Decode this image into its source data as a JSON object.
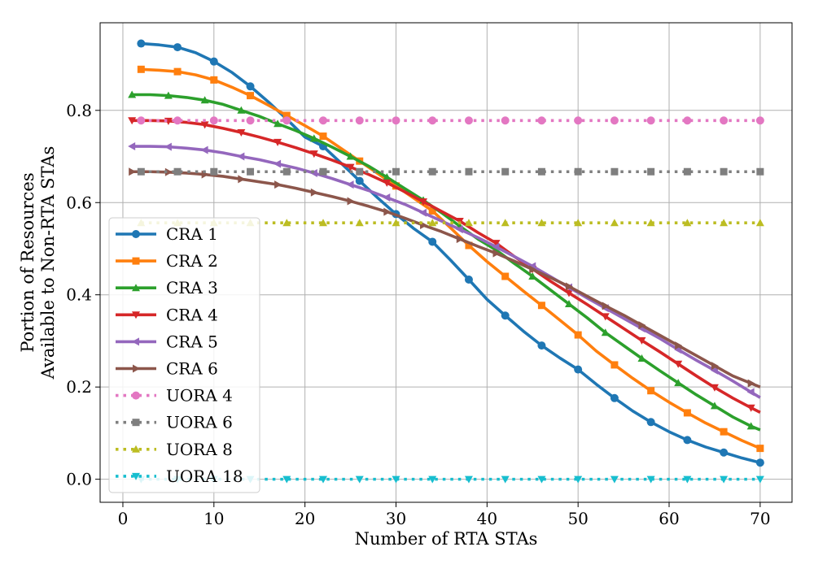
{
  "chart_data": {
    "type": "line",
    "xlabel": "Number of RTA STAs",
    "ylabel": [
      "Portion of Resources",
      "Available to Non-RTA STAs"
    ],
    "xlim": [
      -2.5,
      73.5
    ],
    "ylim": [
      -0.05,
      0.99
    ],
    "xticks": [
      0,
      10,
      20,
      30,
      40,
      50,
      60,
      70
    ],
    "yticks": [
      0.0,
      0.2,
      0.4,
      0.6,
      0.8
    ],
    "ytick_labels": [
      "0.0",
      "0.2",
      "0.4",
      "0.6",
      "0.8"
    ],
    "grid": true,
    "legend_position": "left",
    "series": [
      {
        "name": "CRA 1",
        "color": "#1f77b4",
        "style": "solid",
        "marker": "circle",
        "x": [
          2,
          4,
          6,
          8,
          10,
          12,
          14,
          16,
          18,
          20,
          22,
          24,
          26,
          28,
          30,
          32,
          34,
          36,
          38,
          40,
          42,
          44,
          46,
          48,
          50,
          52,
          54,
          56,
          58,
          60,
          62,
          64,
          66,
          68,
          70
        ],
        "y": [
          0.945,
          0.942,
          0.937,
          0.925,
          0.906,
          0.882,
          0.852,
          0.818,
          0.781,
          0.742,
          0.722,
          0.685,
          0.647,
          0.61,
          0.575,
          0.543,
          0.515,
          0.475,
          0.433,
          0.39,
          0.355,
          0.321,
          0.29,
          0.263,
          0.238,
          0.206,
          0.176,
          0.148,
          0.124,
          0.103,
          0.085,
          0.07,
          0.058,
          0.046,
          0.036
        ],
        "markers_every": 2
      },
      {
        "name": "CRA 2",
        "color": "#ff7f0e",
        "style": "solid",
        "marker": "square",
        "x": [
          2,
          4,
          6,
          8,
          10,
          12,
          14,
          16,
          18,
          20,
          22,
          24,
          26,
          28,
          30,
          32,
          34,
          36,
          38,
          40,
          42,
          44,
          46,
          48,
          50,
          52,
          54,
          56,
          58,
          60,
          62,
          64,
          66,
          68,
          70
        ],
        "y": [
          0.889,
          0.887,
          0.884,
          0.877,
          0.866,
          0.85,
          0.832,
          0.811,
          0.789,
          0.767,
          0.744,
          0.717,
          0.69,
          0.663,
          0.636,
          0.609,
          0.582,
          0.545,
          0.507,
          0.472,
          0.44,
          0.408,
          0.377,
          0.345,
          0.313,
          0.278,
          0.248,
          0.219,
          0.192,
          0.167,
          0.144,
          0.122,
          0.103,
          0.084,
          0.067
        ],
        "markers_every": 2
      },
      {
        "name": "CRA 3",
        "color": "#2ca02c",
        "style": "solid",
        "marker": "triangle-up",
        "x": [
          1,
          3,
          5,
          7,
          9,
          11,
          13,
          15,
          17,
          19,
          21,
          23,
          25,
          27,
          29,
          31,
          33,
          35,
          37,
          39,
          41,
          43,
          45,
          47,
          49,
          51,
          53,
          55,
          57,
          59,
          61,
          63,
          65,
          67,
          69,
          70
        ],
        "y": [
          0.834,
          0.834,
          0.832,
          0.828,
          0.822,
          0.813,
          0.8,
          0.787,
          0.771,
          0.756,
          0.739,
          0.72,
          0.7,
          0.679,
          0.655,
          0.63,
          0.605,
          0.578,
          0.549,
          0.521,
          0.497,
          0.468,
          0.44,
          0.41,
          0.38,
          0.35,
          0.318,
          0.29,
          0.262,
          0.235,
          0.209,
          0.183,
          0.159,
          0.135,
          0.115,
          0.107
        ],
        "markers_every": 2
      },
      {
        "name": "CRA 4",
        "color": "#d62728",
        "style": "solid",
        "marker": "triangle-down",
        "x": [
          1,
          3,
          5,
          7,
          9,
          11,
          13,
          15,
          17,
          19,
          21,
          23,
          25,
          27,
          29,
          31,
          33,
          35,
          37,
          39,
          41,
          43,
          45,
          47,
          49,
          51,
          53,
          55,
          57,
          59,
          61,
          63,
          65,
          67,
          69,
          70
        ],
        "y": [
          0.778,
          0.778,
          0.777,
          0.774,
          0.769,
          0.761,
          0.752,
          0.742,
          0.731,
          0.719,
          0.706,
          0.692,
          0.677,
          0.661,
          0.643,
          0.623,
          0.602,
          0.581,
          0.56,
          0.535,
          0.512,
          0.483,
          0.456,
          0.429,
          0.404,
          0.379,
          0.353,
          0.327,
          0.301,
          0.276,
          0.25,
          0.224,
          0.199,
          0.176,
          0.155,
          0.145
        ],
        "markers_every": 2
      },
      {
        "name": "CRA 5",
        "color": "#9467bd",
        "style": "solid",
        "marker": "triangle-left",
        "x": [
          1,
          3,
          5,
          7,
          9,
          11,
          13,
          15,
          17,
          19,
          21,
          23,
          25,
          27,
          29,
          31,
          33,
          35,
          37,
          39,
          41,
          43,
          45,
          47,
          49,
          51,
          53,
          55,
          57,
          59,
          61,
          63,
          65,
          67,
          69,
          70
        ],
        "y": [
          0.722,
          0.722,
          0.721,
          0.718,
          0.714,
          0.708,
          0.7,
          0.693,
          0.684,
          0.675,
          0.664,
          0.652,
          0.639,
          0.626,
          0.611,
          0.596,
          0.578,
          0.56,
          0.542,
          0.524,
          0.504,
          0.483,
          0.462,
          0.439,
          0.416,
          0.393,
          0.371,
          0.349,
          0.327,
          0.305,
          0.281,
          0.258,
          0.236,
          0.213,
          0.189,
          0.177
        ],
        "markers_every": 2
      },
      {
        "name": "CRA 6",
        "color": "#8c564b",
        "style": "solid",
        "marker": "triangle-right",
        "x": [
          1,
          3,
          5,
          7,
          9,
          11,
          13,
          15,
          17,
          19,
          21,
          23,
          25,
          27,
          29,
          31,
          33,
          35,
          37,
          39,
          41,
          43,
          45,
          47,
          49,
          51,
          53,
          55,
          57,
          59,
          61,
          63,
          65,
          67,
          69,
          70
        ],
        "y": [
          0.667,
          0.667,
          0.666,
          0.664,
          0.661,
          0.657,
          0.651,
          0.645,
          0.639,
          0.631,
          0.622,
          0.613,
          0.603,
          0.592,
          0.58,
          0.566,
          0.551,
          0.537,
          0.521,
          0.505,
          0.49,
          0.473,
          0.455,
          0.437,
          0.418,
          0.397,
          0.376,
          0.356,
          0.334,
          0.312,
          0.29,
          0.268,
          0.246,
          0.224,
          0.208,
          0.2
        ],
        "markers_every": 2
      },
      {
        "name": "UORA 4",
        "color": "#e377c2",
        "style": "dotted",
        "marker": "circle",
        "x": [
          2,
          6,
          10,
          14,
          18,
          22,
          26,
          30,
          34,
          38,
          42,
          46,
          50,
          54,
          58,
          62,
          66,
          70
        ],
        "y": [
          0.778,
          0.778,
          0.778,
          0.778,
          0.778,
          0.778,
          0.778,
          0.778,
          0.778,
          0.778,
          0.778,
          0.778,
          0.778,
          0.778,
          0.778,
          0.778,
          0.778,
          0.778
        ],
        "markers_every": 1
      },
      {
        "name": "UORA 6",
        "color": "#7f7f7f",
        "style": "dotted",
        "marker": "square",
        "x": [
          2,
          6,
          10,
          14,
          18,
          22,
          26,
          30,
          34,
          38,
          42,
          46,
          50,
          54,
          58,
          62,
          66,
          70
        ],
        "y": [
          0.667,
          0.667,
          0.667,
          0.667,
          0.667,
          0.667,
          0.667,
          0.667,
          0.667,
          0.667,
          0.667,
          0.667,
          0.667,
          0.667,
          0.667,
          0.667,
          0.667,
          0.667
        ],
        "markers_every": 1
      },
      {
        "name": "UORA 8",
        "color": "#bcbd22",
        "style": "dotted",
        "marker": "triangle-up",
        "x": [
          2,
          6,
          10,
          14,
          18,
          22,
          26,
          30,
          34,
          38,
          42,
          46,
          50,
          54,
          58,
          62,
          66,
          70
        ],
        "y": [
          0.556,
          0.556,
          0.556,
          0.556,
          0.556,
          0.556,
          0.556,
          0.556,
          0.556,
          0.556,
          0.556,
          0.556,
          0.556,
          0.556,
          0.556,
          0.556,
          0.556,
          0.556
        ],
        "markers_every": 1
      },
      {
        "name": "UORA 18",
        "color": "#17becf",
        "style": "dotted",
        "marker": "triangle-down",
        "x": [
          2,
          6,
          10,
          14,
          18,
          22,
          26,
          30,
          34,
          38,
          42,
          46,
          50,
          54,
          58,
          62,
          66,
          70
        ],
        "y": [
          0.0,
          0.0,
          0.0,
          0.0,
          0.0,
          0.0,
          0.0,
          0.0,
          0.0,
          0.0,
          0.0,
          0.0,
          0.0,
          0.0,
          0.0,
          0.0,
          0.0,
          0.0
        ],
        "markers_every": 1
      }
    ]
  }
}
